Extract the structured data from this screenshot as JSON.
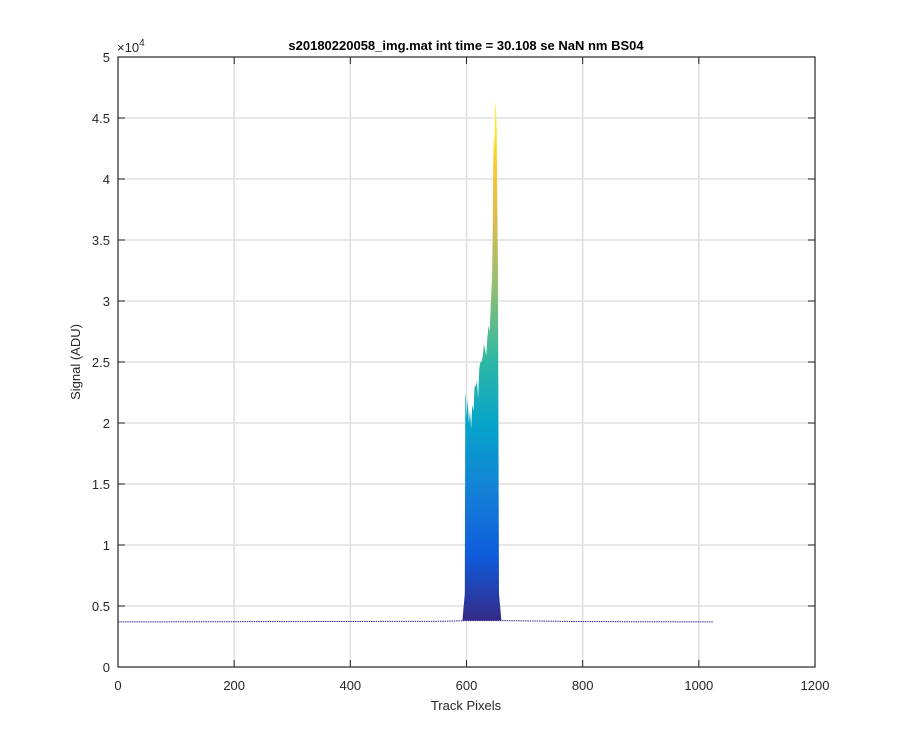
{
  "chart_data": {
    "type": "area",
    "title": "s20180220058_img.mat int time = 30.108 se  NaN nm BS04",
    "xlabel": "Track Pixels",
    "ylabel": "Signal (ADU)",
    "y_exponent_label": "×10",
    "y_exponent_power": "4",
    "xlim": [
      0,
      1200
    ],
    "ylim": [
      0,
      5
    ],
    "x_ticks": [
      0,
      200,
      400,
      600,
      800,
      1000,
      1200
    ],
    "x_tick_labels": [
      "0",
      "200",
      "400",
      "600",
      "800",
      "1000",
      "1200"
    ],
    "y_ticks": [
      0,
      0.5,
      1,
      1.5,
      2,
      2.5,
      3,
      3.5,
      4,
      4.5,
      5
    ],
    "y_tick_labels": [
      "0",
      "0.5",
      "1",
      "1.5",
      "2",
      "2.5",
      "3",
      "3.5",
      "4",
      "4.5",
      "5"
    ],
    "grid": true,
    "colormap": [
      "#352a87",
      "#0f5cdd",
      "#1481d6",
      "#06a4ca",
      "#2eb7a4",
      "#87bf77",
      "#d1bb59",
      "#fec832",
      "#f9fb0e"
    ],
    "baseline_color": "#2e2a8a",
    "baseline": {
      "x": [
        0,
        300,
        560,
        600,
        660,
        800,
        1024
      ],
      "y": [
        0.37,
        0.372,
        0.375,
        0.38,
        0.38,
        0.372,
        0.37
      ]
    },
    "peak_outline": {
      "x": [
        593,
        597,
        598,
        599,
        600,
        602,
        604,
        606,
        608,
        610,
        612,
        614,
        616,
        618,
        620,
        622,
        624,
        626,
        628,
        630,
        632,
        634,
        636,
        638,
        640,
        642,
        644,
        645,
        646,
        647,
        648,
        649,
        650,
        651,
        652,
        653,
        654,
        655,
        656,
        660
      ],
      "y": [
        0.38,
        0.6,
        2.25,
        2.2,
        2.05,
        2.2,
        2.0,
        2.1,
        1.95,
        2.15,
        2.1,
        2.3,
        2.3,
        2.35,
        2.2,
        2.45,
        2.5,
        2.5,
        2.55,
        2.65,
        2.6,
        2.55,
        2.7,
        2.8,
        2.75,
        3.0,
        3.2,
        3.5,
        4.1,
        4.35,
        4.25,
        4.5,
        4.65,
        4.55,
        4.4,
        3.8,
        3.3,
        2.1,
        0.6,
        0.38
      ]
    }
  }
}
